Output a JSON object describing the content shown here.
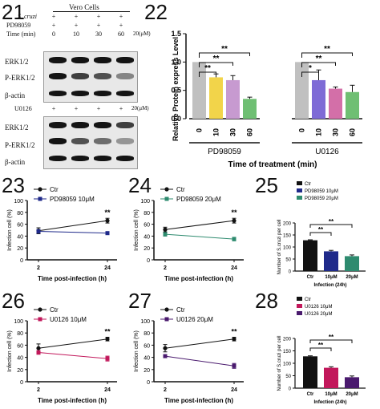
{
  "panel_numbers": [
    "21",
    "22",
    "23",
    "24",
    "25",
    "26",
    "27",
    "28"
  ],
  "blot": {
    "cell_label": "Vero Cells",
    "rows_top": [
      {
        "label": "S. cruzi",
        "values": [
          "+",
          "+",
          "+",
          "+"
        ]
      },
      {
        "label": "PD98059",
        "values": [
          "+",
          "+",
          "+",
          "+"
        ],
        "unit": "20(μM)"
      },
      {
        "label": "Time (min)",
        "values": [
          "0",
          "10",
          "30",
          "60"
        ]
      }
    ],
    "bands_top": [
      "ERK1/2",
      "P-ERK1/2",
      "β-actin"
    ],
    "row_u0126": {
      "label": "U0126",
      "values": [
        "+",
        "+",
        "+",
        "+"
      ],
      "unit": "20(μM)"
    },
    "bands_bottom": [
      "ERK1/2",
      "P-ERK1/2",
      "β-actin"
    ],
    "intensity_top": {
      "ERK1/2": [
        1,
        1,
        1,
        1
      ],
      "P-ERK1/2": [
        1,
        0.8,
        0.7,
        0.4
      ],
      "β-actin": [
        1,
        1,
        1,
        1
      ]
    },
    "intensity_bottom": {
      "ERK1/2": [
        1,
        1,
        1,
        0.8
      ],
      "P-ERK1/2": [
        1,
        0.7,
        0.55,
        0.3
      ],
      "β-actin": [
        1,
        1,
        1,
        1
      ]
    }
  },
  "chart_data": [
    {
      "panel": "22",
      "type": "bar",
      "ylabel": "Relative Protein express Level",
      "xlabel": "Time of treatment (min)",
      "ylim": [
        0,
        1.5
      ],
      "yticks": [
        "0.0",
        "0.5",
        "1.0",
        "1.5"
      ],
      "groups": [
        {
          "name": "PD98059",
          "categories": [
            "0",
            "10",
            "30",
            "60"
          ],
          "values": [
            1.0,
            0.73,
            0.68,
            0.35
          ],
          "errors": [
            0,
            0.06,
            0.08,
            0.03
          ],
          "colors": [
            "#c0c0c0",
            "#f2d44a",
            "#c79ad0",
            "#6fbf73"
          ]
        },
        {
          "name": "U0126",
          "categories": [
            "0",
            "10",
            "30",
            "60"
          ],
          "values": [
            1.0,
            0.68,
            0.53,
            0.47
          ],
          "errors": [
            0,
            0.18,
            0.03,
            0.12
          ],
          "colors": [
            "#c0c0c0",
            "#7e6bd6",
            "#d36fa8",
            "#6fbf73"
          ]
        }
      ],
      "significance": [
        "**",
        "**",
        "**",
        "*",
        "**",
        "**"
      ]
    },
    {
      "panel": "23",
      "type": "line",
      "ylabel": "Infection cell (%)",
      "xlabel": "Time post-infection (h)",
      "x": [
        "2",
        "24"
      ],
      "ylim": [
        0,
        100
      ],
      "yticks": [
        "0",
        "20",
        "40",
        "60",
        "80",
        "100"
      ],
      "series": [
        {
          "name": "Ctr",
          "values": [
            49,
            66
          ],
          "errors": [
            5,
            4
          ],
          "color": "#111111"
        },
        {
          "name": "PD98059 10μM",
          "values": [
            48,
            45
          ],
          "errors": [
            3,
            2
          ],
          "color": "#1f2a8a"
        }
      ],
      "significance": "**"
    },
    {
      "panel": "24",
      "type": "line",
      "ylabel": "Infection cell (%)",
      "xlabel": "Time post-infection (h)",
      "x": [
        "2",
        "24"
      ],
      "ylim": [
        0,
        100
      ],
      "yticks": [
        "0",
        "20",
        "40",
        "60",
        "80",
        "100"
      ],
      "series": [
        {
          "name": "Ctr",
          "values": [
            51,
            66
          ],
          "errors": [
            4,
            4
          ],
          "color": "#111111"
        },
        {
          "name": "PD98059 20μM",
          "values": [
            43,
            35
          ],
          "errors": [
            3,
            3
          ],
          "color": "#2e8b6f"
        }
      ],
      "significance": "**"
    },
    {
      "panel": "25",
      "type": "bar",
      "ylabel": "Number of S.cruzi per cell",
      "xlabel": "Infection (24h)",
      "categories": [
        "Ctr",
        "10μM",
        "20μM"
      ],
      "values": [
        128,
        82,
        62
      ],
      "errors": [
        2,
        4,
        5
      ],
      "colors": [
        "#111111",
        "#1f2a8a",
        "#2e8b6f"
      ],
      "legend": [
        "Ctr",
        "PD98059 10μM",
        "PD98059 20μM"
      ],
      "ylim": [
        0,
        200
      ],
      "yticks": [
        "0",
        "50",
        "100",
        "150",
        "200"
      ],
      "significance": [
        "**",
        "**"
      ]
    },
    {
      "panel": "26",
      "type": "line",
      "ylabel": "Infection cell (%)",
      "xlabel": "Time post-infection (h)",
      "x": [
        "2",
        "24"
      ],
      "ylim": [
        0,
        100
      ],
      "yticks": [
        "0",
        "20",
        "40",
        "60",
        "80",
        "100"
      ],
      "series": [
        {
          "name": "Ctr",
          "values": [
            55,
            70
          ],
          "errors": [
            7,
            3
          ],
          "color": "#111111"
        },
        {
          "name": "U0126 10μM",
          "values": [
            48,
            38
          ],
          "errors": [
            3,
            4
          ],
          "color": "#c2185b"
        }
      ],
      "significance": "**"
    },
    {
      "panel": "27",
      "type": "line",
      "ylabel": "Infection cell (%)",
      "xlabel": "Time post-infection (h)",
      "x": [
        "2",
        "24"
      ],
      "ylim": [
        0,
        100
      ],
      "yticks": [
        "0",
        "20",
        "40",
        "60",
        "80",
        "100"
      ],
      "series": [
        {
          "name": "Ctr",
          "values": [
            55,
            70
          ],
          "errors": [
            6,
            3
          ],
          "color": "#111111"
        },
        {
          "name": "U0126 20μM",
          "values": [
            42,
            26
          ],
          "errors": [
            2,
            4
          ],
          "color": "#4a1a6e"
        }
      ],
      "significance": "**"
    },
    {
      "panel": "28",
      "type": "bar",
      "ylabel": "Number of S.cruzi per cell",
      "xlabel": "Infection (24h)",
      "categories": [
        "Ctr",
        "10μM",
        "20μM"
      ],
      "values": [
        128,
        82,
        44
      ],
      "errors": [
        2,
        4,
        5
      ],
      "colors": [
        "#111111",
        "#c2185b",
        "#4a1a6e"
      ],
      "legend": [
        "Ctr",
        "U0126 10μM",
        "U0126 20μM"
      ],
      "ylim": [
        0,
        200
      ],
      "yticks": [
        "0",
        "50",
        "100",
        "150",
        "200"
      ],
      "significance": [
        "**",
        "**"
      ]
    }
  ]
}
